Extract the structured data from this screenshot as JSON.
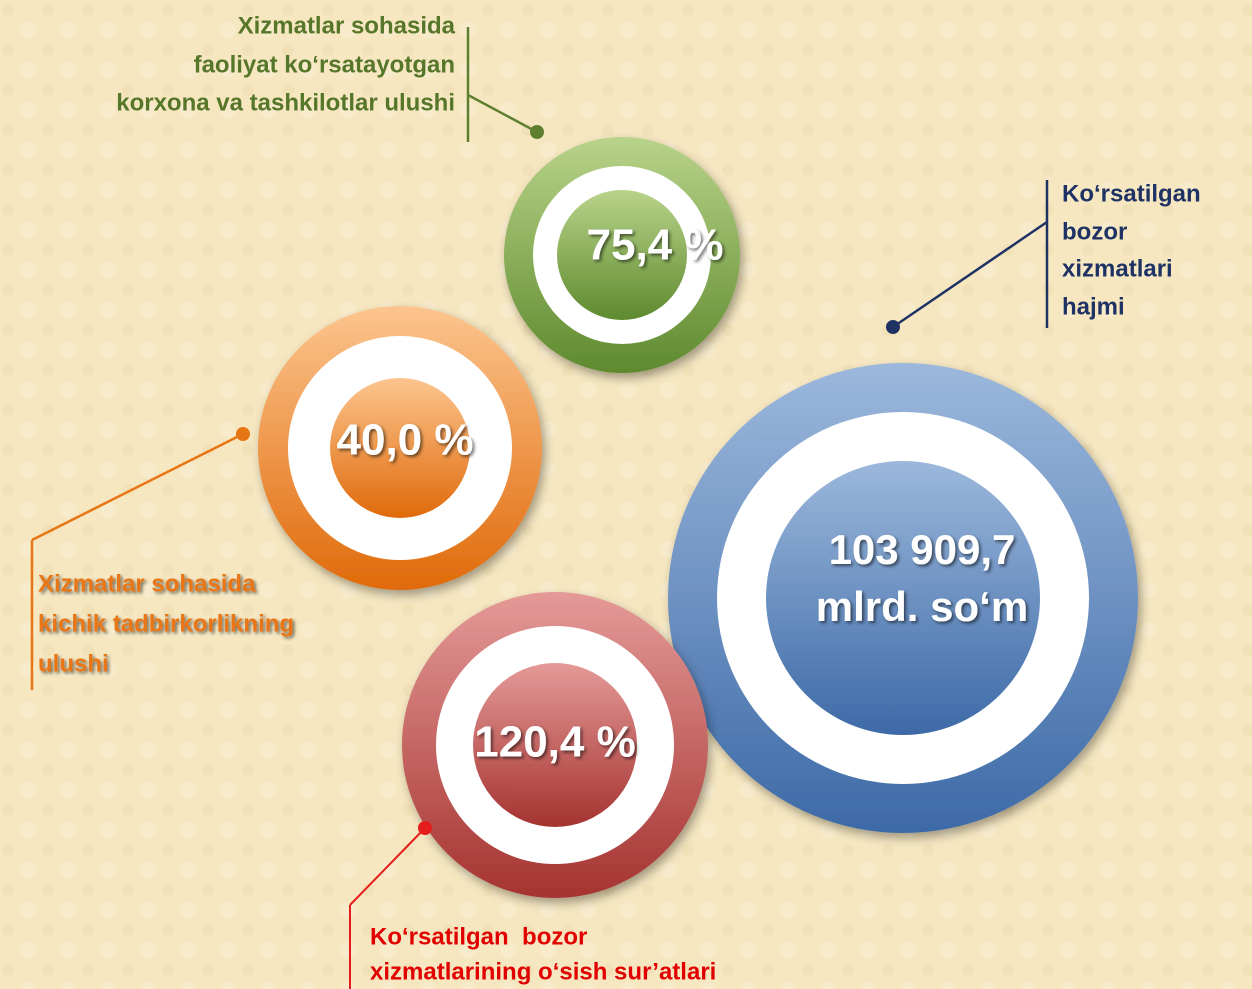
{
  "items": [
    {
      "value": [
        "75,4 %"
      ],
      "label": [
        "Xizmatlar sohasida",
        "faoliyat ko‘rsatayotgan",
        "korxona va tashkilotlar ulushi"
      ]
    },
    {
      "value": [
        "103 909,7",
        "mlrd. so‘m"
      ],
      "label": [
        "Ko‘rsatilgan",
        "bozor",
        "xizmatlari",
        "hajmi"
      ]
    },
    {
      "value": [
        "40,0 %"
      ],
      "label": [
        "Xizmatlar sohasida",
        "kichik tadbirkorlikning",
        "ulushi"
      ]
    },
    {
      "value": [
        "120,4 %"
      ],
      "label": [
        "Ko‘rsatilgan  bozor",
        "xizmatlarining o‘sish sur’atlari"
      ]
    }
  ]
}
